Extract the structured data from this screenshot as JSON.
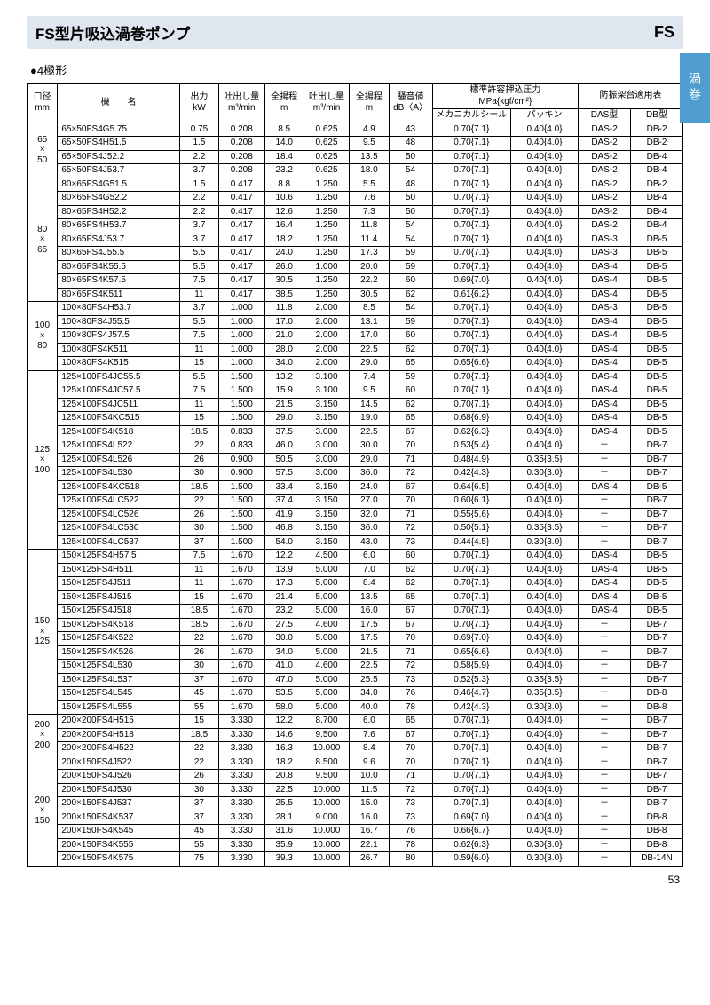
{
  "page_number": "53",
  "title_left": "FS型片吸込渦巻ポンプ",
  "title_right": "FS",
  "side_tab": "渦巻",
  "subtitle": "●4極形",
  "header": {
    "dia": "口径",
    "dia_unit": "mm",
    "name": "機　　名",
    "kw": "出力",
    "kw_unit": "kW",
    "q1": "吐出し量",
    "q1_unit": "m³/min",
    "h1": "全揚程",
    "h1_unit": "m",
    "q2": "吐出し量",
    "q2_unit": "m³/min",
    "h2": "全揚程",
    "h2_unit": "m",
    "noise": "騒音値",
    "noise_unit": "dB〈A〉",
    "pressure": "標準許容押込圧力",
    "pressure_unit": "MPa{kgf/cm²}",
    "p_mech": "メカニカルシール",
    "p_pack": "パッキン",
    "frame": "防振架台適用表",
    "das": "DAS型",
    "dbt": "DB型"
  },
  "groups": [
    {
      "dia": "65\n×\n50",
      "rows": [
        {
          "n": "65×50FS4G5.75",
          "kw": "0.75",
          "q1": "0.208",
          "h1": "8.5",
          "q2": "0.625",
          "h2": "4.9",
          "db": "43",
          "p1": "0.70{7.1}",
          "p2": "0.40{4.0}",
          "das": "DAS-2",
          "dbt": "DB-2"
        },
        {
          "n": "65×50FS4H51.5",
          "kw": "1.5",
          "q1": "0.208",
          "h1": "14.0",
          "q2": "0.625",
          "h2": "9.5",
          "db": "48",
          "p1": "0.70{7.1}",
          "p2": "0.40{4.0}",
          "das": "DAS-2",
          "dbt": "DB-2"
        },
        {
          "n": "65×50FS4J52.2",
          "kw": "2.2",
          "q1": "0.208",
          "h1": "18.4",
          "q2": "0.625",
          "h2": "13.5",
          "db": "50",
          "p1": "0.70{7.1}",
          "p2": "0.40{4.0}",
          "das": "DAS-2",
          "dbt": "DB-4"
        },
        {
          "n": "65×50FS4J53.7",
          "kw": "3.7",
          "q1": "0.208",
          "h1": "23.2",
          "q2": "0.625",
          "h2": "18.0",
          "db": "54",
          "p1": "0.70{7.1}",
          "p2": "0.40{4.0}",
          "das": "DAS-2",
          "dbt": "DB-4"
        }
      ]
    },
    {
      "dia": "80\n×\n65",
      "rows": [
        {
          "n": "80×65FS4G51.5",
          "kw": "1.5",
          "q1": "0.417",
          "h1": "8.8",
          "q2": "1.250",
          "h2": "5.5",
          "db": "48",
          "p1": "0.70{7.1}",
          "p2": "0.40{4.0}",
          "das": "DAS-2",
          "dbt": "DB-2"
        },
        {
          "n": "80×65FS4G52.2",
          "kw": "2.2",
          "q1": "0.417",
          "h1": "10.6",
          "q2": "1.250",
          "h2": "7.6",
          "db": "50",
          "p1": "0.70{7.1}",
          "p2": "0.40{4.0}",
          "das": "DAS-2",
          "dbt": "DB-4"
        },
        {
          "n": "80×65FS4H52.2",
          "kw": "2.2",
          "q1": "0.417",
          "h1": "12.6",
          "q2": "1.250",
          "h2": "7.3",
          "db": "50",
          "p1": "0.70{7.1}",
          "p2": "0.40{4.0}",
          "das": "DAS-2",
          "dbt": "DB-4"
        },
        {
          "n": "80×65FS4H53.7",
          "kw": "3.7",
          "q1": "0.417",
          "h1": "16.4",
          "q2": "1.250",
          "h2": "11.8",
          "db": "54",
          "p1": "0.70{7.1}",
          "p2": "0.40{4.0}",
          "das": "DAS-2",
          "dbt": "DB-4"
        },
        {
          "n": "80×65FS4J53.7",
          "kw": "3.7",
          "q1": "0.417",
          "h1": "18.2",
          "q2": "1.250",
          "h2": "11.4",
          "db": "54",
          "p1": "0.70{7.1}",
          "p2": "0.40{4.0}",
          "das": "DAS-3",
          "dbt": "DB-5"
        },
        {
          "n": "80×65FS4J55.5",
          "kw": "5.5",
          "q1": "0.417",
          "h1": "24.0",
          "q2": "1.250",
          "h2": "17.3",
          "db": "59",
          "p1": "0.70{7.1}",
          "p2": "0.40{4.0}",
          "das": "DAS-3",
          "dbt": "DB-5"
        },
        {
          "n": "80×65FS4K55.5",
          "kw": "5.5",
          "q1": "0.417",
          "h1": "26.0",
          "q2": "1.000",
          "h2": "20.0",
          "db": "59",
          "p1": "0.70{7.1}",
          "p2": "0.40{4.0}",
          "das": "DAS-4",
          "dbt": "DB-5"
        },
        {
          "n": "80×65FS4K57.5",
          "kw": "7.5",
          "q1": "0.417",
          "h1": "30.5",
          "q2": "1.250",
          "h2": "22.2",
          "db": "60",
          "p1": "0.69{7.0}",
          "p2": "0.40{4.0}",
          "das": "DAS-4",
          "dbt": "DB-5"
        },
        {
          "n": "80×65FS4K511",
          "kw": "11",
          "q1": "0.417",
          "h1": "38.5",
          "q2": "1.250",
          "h2": "30.5",
          "db": "62",
          "p1": "0.61{6.2}",
          "p2": "0.40{4.0}",
          "das": "DAS-4",
          "dbt": "DB-5"
        }
      ]
    },
    {
      "dia": "100\n×\n80",
      "rows": [
        {
          "n": "100×80FS4H53.7",
          "kw": "3.7",
          "q1": "1.000",
          "h1": "11.8",
          "q2": "2.000",
          "h2": "8.5",
          "db": "54",
          "p1": "0.70{7.1}",
          "p2": "0.40{4.0}",
          "das": "DAS-3",
          "dbt": "DB-5"
        },
        {
          "n": "100×80FS4J55.5",
          "kw": "5.5",
          "q1": "1.000",
          "h1": "17.0",
          "q2": "2.000",
          "h2": "13.1",
          "db": "59",
          "p1": "0.70{7.1}",
          "p2": "0.40{4.0}",
          "das": "DAS-4",
          "dbt": "DB-5"
        },
        {
          "n": "100×80FS4J57.5",
          "kw": "7.5",
          "q1": "1.000",
          "h1": "21.0",
          "q2": "2.000",
          "h2": "17.0",
          "db": "60",
          "p1": "0.70{7.1}",
          "p2": "0.40{4.0}",
          "das": "DAS-4",
          "dbt": "DB-5"
        },
        {
          "n": "100×80FS4K511",
          "kw": "11",
          "q1": "1.000",
          "h1": "28.0",
          "q2": "2.000",
          "h2": "22.5",
          "db": "62",
          "p1": "0.70{7.1}",
          "p2": "0.40{4.0}",
          "das": "DAS-4",
          "dbt": "DB-5"
        },
        {
          "n": "100×80FS4K515",
          "kw": "15",
          "q1": "1.000",
          "h1": "34.0",
          "q2": "2.000",
          "h2": "29.0",
          "db": "65",
          "p1": "0.65{6.6}",
          "p2": "0.40{4.0}",
          "das": "DAS-4",
          "dbt": "DB-5"
        }
      ]
    },
    {
      "dia": "125\n×\n100",
      "rows": [
        {
          "n": "125×100FS4JC55.5",
          "kw": "5.5",
          "q1": "1.500",
          "h1": "13.2",
          "q2": "3.100",
          "h2": "7.4",
          "db": "59",
          "p1": "0.70{7.1}",
          "p2": "0.40{4.0}",
          "das": "DAS-4",
          "dbt": "DB-5"
        },
        {
          "n": "125×100FS4JC57.5",
          "kw": "7.5",
          "q1": "1.500",
          "h1": "15.9",
          "q2": "3.100",
          "h2": "9.5",
          "db": "60",
          "p1": "0.70{7.1}",
          "p2": "0.40{4.0}",
          "das": "DAS-4",
          "dbt": "DB-5"
        },
        {
          "n": "125×100FS4JC511",
          "kw": "11",
          "q1": "1.500",
          "h1": "21.5",
          "q2": "3.150",
          "h2": "14.5",
          "db": "62",
          "p1": "0.70{7.1}",
          "p2": "0.40{4.0}",
          "das": "DAS-4",
          "dbt": "DB-5"
        },
        {
          "n": "125×100FS4KC515",
          "kw": "15",
          "q1": "1.500",
          "h1": "29.0",
          "q2": "3.150",
          "h2": "19.0",
          "db": "65",
          "p1": "0.68{6.9}",
          "p2": "0.40{4.0}",
          "das": "DAS-4",
          "dbt": "DB-5"
        },
        {
          "n": "125×100FS4K518",
          "kw": "18.5",
          "q1": "0.833",
          "h1": "37.5",
          "q2": "3.000",
          "h2": "22.5",
          "db": "67",
          "p1": "0.62{6.3}",
          "p2": "0.40{4.0}",
          "das": "DAS-4",
          "dbt": "DB-5"
        },
        {
          "n": "125×100FS4L522",
          "kw": "22",
          "q1": "0.833",
          "h1": "46.0",
          "q2": "3.000",
          "h2": "30.0",
          "db": "70",
          "p1": "0.53{5.4}",
          "p2": "0.40{4.0}",
          "das": "－",
          "dbt": "DB-7"
        },
        {
          "n": "125×100FS4L526",
          "kw": "26",
          "q1": "0.900",
          "h1": "50.5",
          "q2": "3.000",
          "h2": "29.0",
          "db": "71",
          "p1": "0.48{4.9}",
          "p2": "0.35{3.5}",
          "das": "－",
          "dbt": "DB-7"
        },
        {
          "n": "125×100FS4L530",
          "kw": "30",
          "q1": "0.900",
          "h1": "57.5",
          "q2": "3.000",
          "h2": "36.0",
          "db": "72",
          "p1": "0.42{4.3}",
          "p2": "0.30{3.0}",
          "das": "－",
          "dbt": "DB-7"
        },
        {
          "n": "125×100FS4KC518",
          "kw": "18.5",
          "q1": "1.500",
          "h1": "33.4",
          "q2": "3.150",
          "h2": "24.0",
          "db": "67",
          "p1": "0.64{6.5}",
          "p2": "0.40{4.0}",
          "das": "DAS-4",
          "dbt": "DB-5"
        },
        {
          "n": "125×100FS4LC522",
          "kw": "22",
          "q1": "1.500",
          "h1": "37.4",
          "q2": "3.150",
          "h2": "27.0",
          "db": "70",
          "p1": "0.60{6.1}",
          "p2": "0.40{4.0}",
          "das": "－",
          "dbt": "DB-7"
        },
        {
          "n": "125×100FS4LC526",
          "kw": "26",
          "q1": "1.500",
          "h1": "41.9",
          "q2": "3.150",
          "h2": "32.0",
          "db": "71",
          "p1": "0.55{5.6}",
          "p2": "0.40{4.0}",
          "das": "－",
          "dbt": "DB-7"
        },
        {
          "n": "125×100FS4LC530",
          "kw": "30",
          "q1": "1.500",
          "h1": "46.8",
          "q2": "3.150",
          "h2": "36.0",
          "db": "72",
          "p1": "0.50{5.1}",
          "p2": "0.35{3.5}",
          "das": "－",
          "dbt": "DB-7"
        },
        {
          "n": "125×100FS4LC537",
          "kw": "37",
          "q1": "1.500",
          "h1": "54.0",
          "q2": "3.150",
          "h2": "43.0",
          "db": "73",
          "p1": "0.44{4.5}",
          "p2": "0.30{3.0}",
          "das": "－",
          "dbt": "DB-7"
        }
      ]
    },
    {
      "dia": "150\n×\n125",
      "rows": [
        {
          "n": "150×125FS4H57.5",
          "kw": "7.5",
          "q1": "1.670",
          "h1": "12.2",
          "q2": "4.500",
          "h2": "6.0",
          "db": "60",
          "p1": "0.70{7.1}",
          "p2": "0.40{4.0}",
          "das": "DAS-4",
          "dbt": "DB-5"
        },
        {
          "n": "150×125FS4H511",
          "kw": "11",
          "q1": "1.670",
          "h1": "13.9",
          "q2": "5.000",
          "h2": "7.0",
          "db": "62",
          "p1": "0.70{7.1}",
          "p2": "0.40{4.0}",
          "das": "DAS-4",
          "dbt": "DB-5"
        },
        {
          "n": "150×125FS4J511",
          "kw": "11",
          "q1": "1.670",
          "h1": "17.3",
          "q2": "5.000",
          "h2": "8.4",
          "db": "62",
          "p1": "0.70{7.1}",
          "p2": "0.40{4.0}",
          "das": "DAS-4",
          "dbt": "DB-5"
        },
        {
          "n": "150×125FS4J515",
          "kw": "15",
          "q1": "1.670",
          "h1": "21.4",
          "q2": "5.000",
          "h2": "13.5",
          "db": "65",
          "p1": "0.70{7.1}",
          "p2": "0.40{4.0}",
          "das": "DAS-4",
          "dbt": "DB-5"
        },
        {
          "n": "150×125FS4J518",
          "kw": "18.5",
          "q1": "1.670",
          "h1": "23.2",
          "q2": "5.000",
          "h2": "16.0",
          "db": "67",
          "p1": "0.70{7.1}",
          "p2": "0.40{4.0}",
          "das": "DAS-4",
          "dbt": "DB-5"
        },
        {
          "n": "150×125FS4K518",
          "kw": "18.5",
          "q1": "1.670",
          "h1": "27.5",
          "q2": "4.600",
          "h2": "17.5",
          "db": "67",
          "p1": "0.70{7.1}",
          "p2": "0.40{4.0}",
          "das": "－",
          "dbt": "DB-7"
        },
        {
          "n": "150×125FS4K522",
          "kw": "22",
          "q1": "1.670",
          "h1": "30.0",
          "q2": "5.000",
          "h2": "17.5",
          "db": "70",
          "p1": "0.69{7.0}",
          "p2": "0.40{4.0}",
          "das": "－",
          "dbt": "DB-7"
        },
        {
          "n": "150×125FS4K526",
          "kw": "26",
          "q1": "1.670",
          "h1": "34.0",
          "q2": "5.000",
          "h2": "21.5",
          "db": "71",
          "p1": "0.65{6.6}",
          "p2": "0.40{4.0}",
          "das": "－",
          "dbt": "DB-7"
        },
        {
          "n": "150×125FS4L530",
          "kw": "30",
          "q1": "1.670",
          "h1": "41.0",
          "q2": "4.600",
          "h2": "22.5",
          "db": "72",
          "p1": "0.58{5.9}",
          "p2": "0.40{4.0}",
          "das": "－",
          "dbt": "DB-7"
        },
        {
          "n": "150×125FS4L537",
          "kw": "37",
          "q1": "1.670",
          "h1": "47.0",
          "q2": "5.000",
          "h2": "25.5",
          "db": "73",
          "p1": "0.52{5.3}",
          "p2": "0.35{3.5}",
          "das": "－",
          "dbt": "DB-7"
        },
        {
          "n": "150×125FS4L545",
          "kw": "45",
          "q1": "1.670",
          "h1": "53.5",
          "q2": "5.000",
          "h2": "34.0",
          "db": "76",
          "p1": "0.46{4.7}",
          "p2": "0.35{3.5}",
          "das": "－",
          "dbt": "DB-8"
        },
        {
          "n": "150×125FS4L555",
          "kw": "55",
          "q1": "1.670",
          "h1": "58.0",
          "q2": "5.000",
          "h2": "40.0",
          "db": "78",
          "p1": "0.42{4.3}",
          "p2": "0.30{3.0}",
          "das": "－",
          "dbt": "DB-8"
        }
      ]
    },
    {
      "dia": "200\n×\n200",
      "rows": [
        {
          "n": "200×200FS4H515",
          "kw": "15",
          "q1": "3.330",
          "h1": "12.2",
          "q2": "8.700",
          "h2": "6.0",
          "db": "65",
          "p1": "0.70{7.1}",
          "p2": "0.40{4.0}",
          "das": "－",
          "dbt": "DB-7"
        },
        {
          "n": "200×200FS4H518",
          "kw": "18.5",
          "q1": "3.330",
          "h1": "14.6",
          "q2": "9.500",
          "h2": "7.6",
          "db": "67",
          "p1": "0.70{7.1}",
          "p2": "0.40{4.0}",
          "das": "－",
          "dbt": "DB-7"
        },
        {
          "n": "200×200FS4H522",
          "kw": "22",
          "q1": "3.330",
          "h1": "16.3",
          "q2": "10.000",
          "h2": "8.4",
          "db": "70",
          "p1": "0.70{7.1}",
          "p2": "0.40{4.0}",
          "das": "－",
          "dbt": "DB-7"
        }
      ]
    },
    {
      "dia": "200\n×\n150",
      "rows": [
        {
          "n": "200×150FS4J522",
          "kw": "22",
          "q1": "3.330",
          "h1": "18.2",
          "q2": "8.500",
          "h2": "9.6",
          "db": "70",
          "p1": "0.70{7.1}",
          "p2": "0.40{4.0}",
          "das": "－",
          "dbt": "DB-7"
        },
        {
          "n": "200×150FS4J526",
          "kw": "26",
          "q1": "3.330",
          "h1": "20.8",
          "q2": "9.500",
          "h2": "10.0",
          "db": "71",
          "p1": "0.70{7.1}",
          "p2": "0.40{4.0}",
          "das": "－",
          "dbt": "DB-7"
        },
        {
          "n": "200×150FS4J530",
          "kw": "30",
          "q1": "3.330",
          "h1": "22.5",
          "q2": "10.000",
          "h2": "11.5",
          "db": "72",
          "p1": "0.70{7.1}",
          "p2": "0.40{4.0}",
          "das": "－",
          "dbt": "DB-7"
        },
        {
          "n": "200×150FS4J537",
          "kw": "37",
          "q1": "3.330",
          "h1": "25.5",
          "q2": "10.000",
          "h2": "15.0",
          "db": "73",
          "p1": "0.70{7.1}",
          "p2": "0.40{4.0}",
          "das": "－",
          "dbt": "DB-7"
        },
        {
          "n": "200×150FS4K537",
          "kw": "37",
          "q1": "3.330",
          "h1": "28.1",
          "q2": "9.000",
          "h2": "16.0",
          "db": "73",
          "p1": "0.69{7.0}",
          "p2": "0.40{4.0}",
          "das": "－",
          "dbt": "DB-8"
        },
        {
          "n": "200×150FS4K545",
          "kw": "45",
          "q1": "3.330",
          "h1": "31.6",
          "q2": "10.000",
          "h2": "16.7",
          "db": "76",
          "p1": "0.66{6.7}",
          "p2": "0.40{4.0}",
          "das": "－",
          "dbt": "DB-8"
        },
        {
          "n": "200×150FS4K555",
          "kw": "55",
          "q1": "3.330",
          "h1": "35.9",
          "q2": "10.000",
          "h2": "22.1",
          "db": "78",
          "p1": "0.62{6.3}",
          "p2": "0.30{3.0}",
          "das": "－",
          "dbt": "DB-8"
        },
        {
          "n": "200×150FS4K575",
          "kw": "75",
          "q1": "3.330",
          "h1": "39.3",
          "q2": "10.000",
          "h2": "26.7",
          "db": "80",
          "p1": "0.59{6.0}",
          "p2": "0.30{3.0}",
          "das": "－",
          "dbt": "DB-14N"
        }
      ]
    }
  ]
}
